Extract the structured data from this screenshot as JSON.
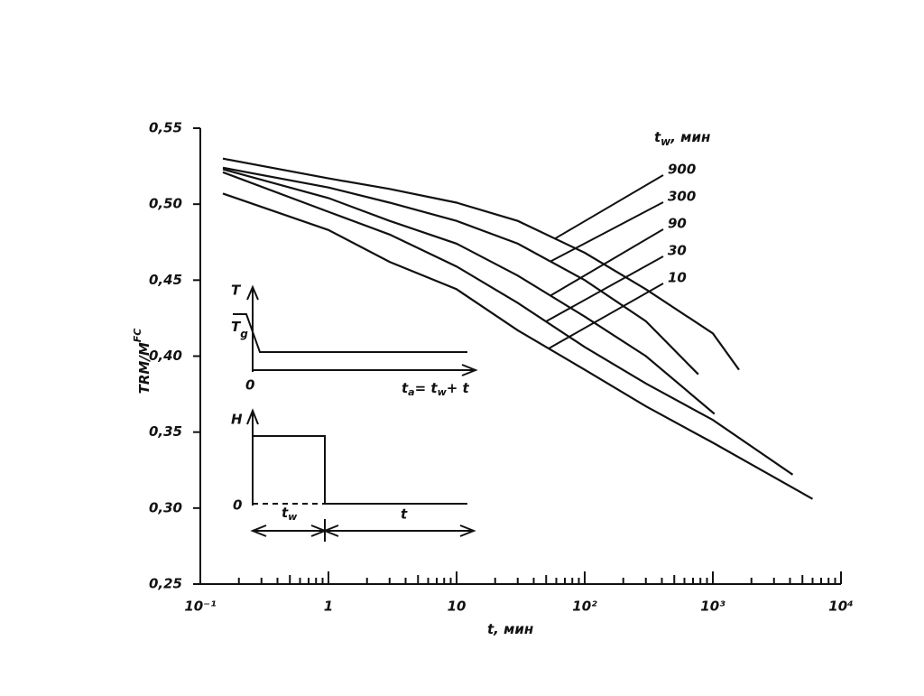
{
  "chart_data": {
    "type": "line",
    "log_x": true,
    "x_label": [
      "t",
      ", мин"
    ],
    "y_label": [
      "TRM/M",
      "FC"
    ],
    "legend_title": [
      "t",
      "w",
      ", мин"
    ],
    "xlim": [
      0.1,
      10000
    ],
    "ylim": [
      0.25,
      0.55
    ],
    "xticks": [
      {
        "value": 0.1,
        "label": "10⁻¹"
      },
      1,
      10,
      {
        "value": 100,
        "label": "10²"
      },
      {
        "value": 1000,
        "label": "10³"
      },
      {
        "value": 10000,
        "label": "10⁴"
      }
    ],
    "yticks": [
      {
        "value": 0.25,
        "label": "0,25"
      },
      {
        "value": 0.3,
        "label": "0,30"
      },
      {
        "value": 0.35,
        "label": "0,35"
      },
      {
        "value": 0.4,
        "label": "0,40"
      },
      {
        "value": 0.45,
        "label": "0,45"
      },
      {
        "value": 0.5,
        "label": "0,50"
      },
      {
        "value": 0.55,
        "label": "0,55"
      }
    ],
    "series": [
      {
        "name": "900",
        "color": "#111",
        "x": [
          0.15,
          1,
          3,
          10,
          30,
          100,
          300,
          1000,
          1600
        ],
        "values": [
          0.53,
          0.517,
          0.51,
          0.501,
          0.489,
          0.468,
          0.444,
          0.415,
          0.391
        ]
      },
      {
        "name": "300",
        "color": "#111",
        "x": [
          0.15,
          1,
          3,
          10,
          30,
          100,
          300,
          770
        ],
        "values": [
          0.524,
          0.511,
          0.501,
          0.489,
          0.474,
          0.45,
          0.423,
          0.388
        ]
      },
      {
        "name": "90",
        "color": "#111",
        "x": [
          0.15,
          1,
          3,
          10,
          30,
          100,
          300,
          1030
        ],
        "values": [
          0.523,
          0.504,
          0.489,
          0.474,
          0.453,
          0.426,
          0.4,
          0.362
        ]
      },
      {
        "name": "30",
        "color": "#111",
        "x": [
          0.15,
          1,
          3,
          10,
          30,
          100,
          300,
          1000,
          4200
        ],
        "values": [
          0.521,
          0.495,
          0.48,
          0.459,
          0.435,
          0.406,
          0.382,
          0.358,
          0.322
        ]
      },
      {
        "name": "10",
        "color": "#111",
        "x": [
          0.15,
          1,
          3,
          10,
          30,
          100,
          300,
          1000,
          6000
        ],
        "values": [
          0.507,
          0.483,
          0.462,
          0.444,
          0.417,
          0.391,
          0.367,
          0.343,
          0.306
        ]
      }
    ],
    "annotations": [
      "T",
      "T",
      "g",
      "0",
      "t",
      "a",
      "= t",
      "w",
      "+ t",
      "H",
      "0",
      "t",
      "w",
      "t"
    ]
  }
}
